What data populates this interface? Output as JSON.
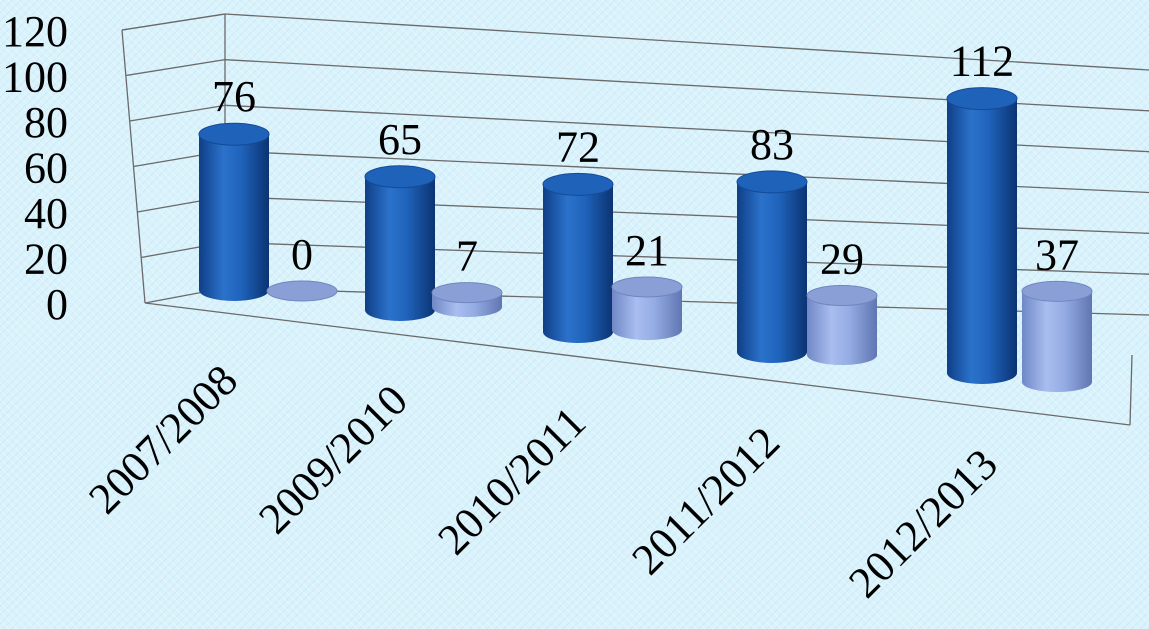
{
  "chart_data": {
    "type": "bar",
    "style": "3d-cylinder",
    "categories": [
      "2007/2008",
      "2009/2010",
      "2010/2011",
      "2011/2012",
      "2012/2013"
    ],
    "series": [
      {
        "values": [
          76,
          65,
          72,
          83,
          112
        ],
        "color": "#1d5fb3"
      },
      {
        "values": [
          0,
          7,
          21,
          29,
          37
        ],
        "color": "#8fa8e0"
      }
    ],
    "title": "",
    "xlabel": "",
    "ylabel": "",
    "ylim": [
      0,
      120
    ],
    "yticks": [
      "0",
      "20",
      "40",
      "60",
      "80",
      "100",
      "120"
    ],
    "grid": true,
    "legend": "none",
    "data_labels": true
  }
}
